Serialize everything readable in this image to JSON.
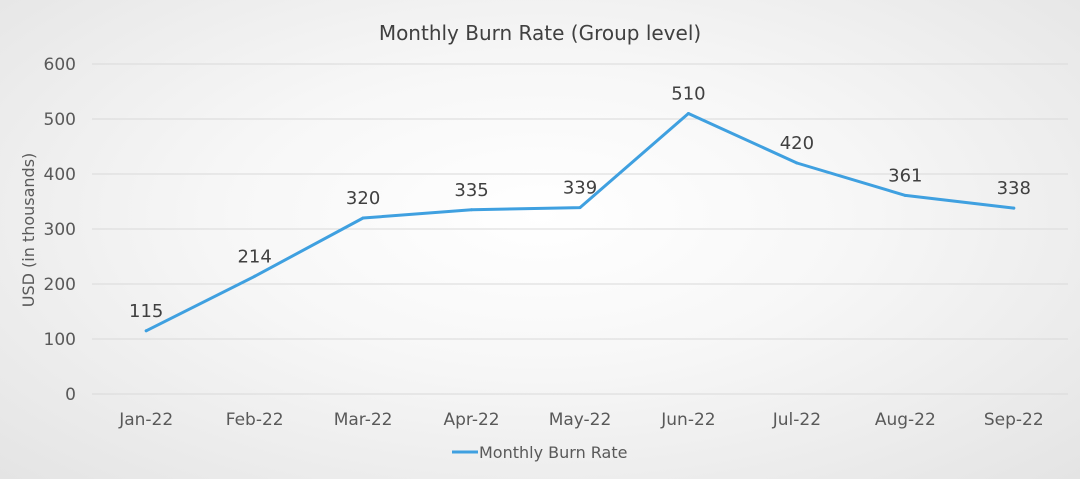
{
  "chart_data": {
    "type": "line",
    "title": "Monthly Burn Rate (Group level)",
    "xlabel": "",
    "ylabel": "USD (in thousands)",
    "categories": [
      "Jan-22",
      "Feb-22",
      "Mar-22",
      "Apr-22",
      "May-22",
      "Jun-22",
      "Jul-22",
      "Aug-22",
      "Sep-22"
    ],
    "series": [
      {
        "name": "Monthly Burn Rate",
        "values": [
          115,
          214,
          320,
          335,
          339,
          510,
          420,
          361,
          338
        ],
        "color": "#3fa0e0"
      }
    ],
    "ylim": [
      0,
      600
    ],
    "yticks": [
      0,
      100,
      200,
      300,
      400,
      500,
      600
    ],
    "grid": true,
    "data_labels": true,
    "legend_position": "bottom"
  }
}
